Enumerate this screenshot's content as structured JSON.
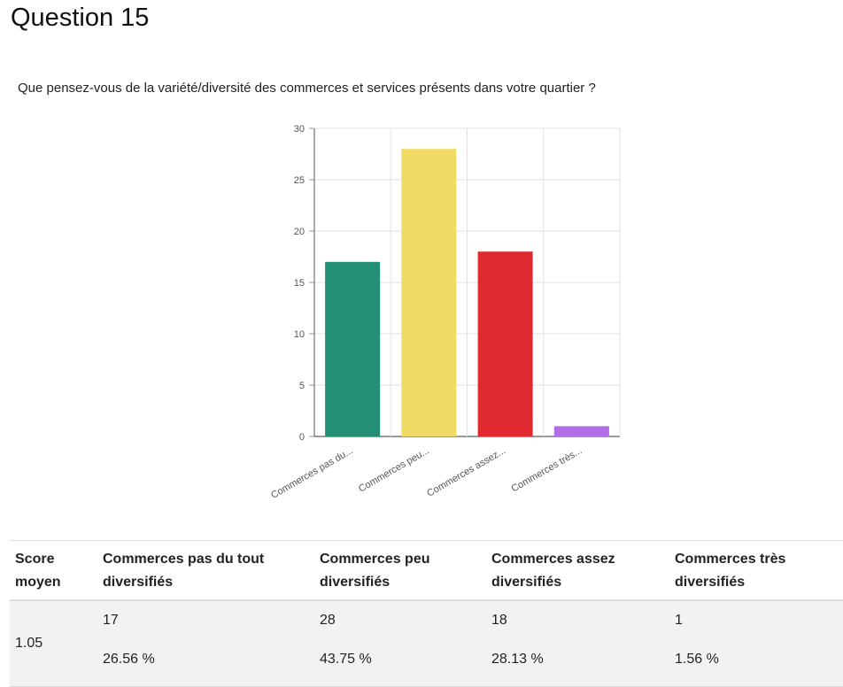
{
  "page": {
    "title": "Question 15",
    "question": "Que pensez-vous de la variété/diversité des commerces et services présents dans votre quartier ?"
  },
  "chart_data": {
    "type": "bar",
    "categories": [
      "Commerces pas du...",
      "Commerces peu...",
      "Commerces assez...",
      "Commerces très..."
    ],
    "values": [
      17,
      28,
      18,
      1
    ],
    "colors": [
      "#238f75",
      "#f0dc64",
      "#e12932",
      "#b26ee6"
    ],
    "ylim": [
      0,
      30
    ],
    "yticks": [
      0,
      5,
      10,
      15,
      20,
      25,
      30
    ],
    "grid": true
  },
  "table": {
    "headers": [
      "Score moyen",
      "Commerces pas du tout diversifiés",
      "Commerces peu diversifiés",
      "Commerces assez diversifiés",
      "Commerces très diversifiés"
    ],
    "score": "1.05",
    "cells": [
      {
        "count": "17",
        "pct": "26.56 %"
      },
      {
        "count": "28",
        "pct": "43.75 %"
      },
      {
        "count": "18",
        "pct": "28.13 %"
      },
      {
        "count": "1",
        "pct": "1.56 %"
      }
    ]
  }
}
